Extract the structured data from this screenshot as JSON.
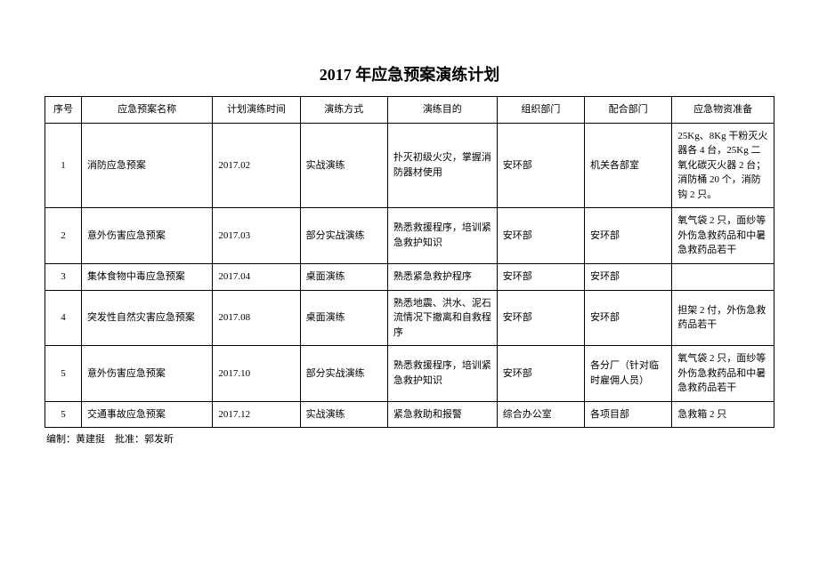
{
  "title": "2017 年应急预案演练计划",
  "headers": {
    "seq": "序号",
    "name": "应急预案名称",
    "time": "计划演练时间",
    "method": "演练方式",
    "purpose": "演练目的",
    "org": "组织部门",
    "coop": "配合部门",
    "supply": "应急物资准备"
  },
  "rows": [
    {
      "seq": "1",
      "name": "消防应急预案",
      "time": "2017.02",
      "method": "实战演练",
      "purpose": "扑灭初级火灾，掌握消防器材使用",
      "org": "安环部",
      "coop": "机关各部室",
      "supply": "25Kg、8Kg 干粉灭火器各 4 台，25Kg 二氧化碳灭火器 2 台；消防桶 20 个，消防钩 2 只。"
    },
    {
      "seq": "2",
      "name": "意外伤害应急预案",
      "time": "2017.03",
      "method": "部分实战演练",
      "purpose": "熟悉救援程序，培训紧急救护知识",
      "org": "安环部",
      "coop": "安环部",
      "supply": "氧气袋 2 只，面纱等外伤急救药品和中暑急救药品若干"
    },
    {
      "seq": "3",
      "name": "集体食物中毒应急预案",
      "time": "2017.04",
      "method": "桌面演练",
      "purpose": "熟悉紧急救护程序",
      "org": "安环部",
      "coop": "安环部",
      "supply": ""
    },
    {
      "seq": "4",
      "name": "突发性自然灾害应急预案",
      "time": "2017.08",
      "method": "桌面演练",
      "purpose": "熟悉地震、洪水、泥石流情况下撤离和自救程序",
      "org": "安环部",
      "coop": "安环部",
      "supply": "担架 2 付，外伤急救药品若干"
    },
    {
      "seq": "5",
      "name": "意外伤害应急预案",
      "time": "2017.10",
      "method": "部分实战演练",
      "purpose": "熟悉救援程序，培训紧急救护知识",
      "org": "安环部",
      "coop": "各分厂（针对临时雇佣人员）",
      "supply": "氧气袋 2 只，面纱等外伤急救药品和中暑急救药品若干"
    },
    {
      "seq": "5",
      "name": "交通事故应急预案",
      "time": "2017.12",
      "method": "实战演练",
      "purpose": "紧急救助和报警",
      "org": "综合办公室",
      "coop": "各项目部",
      "supply": "急救箱 2 只"
    }
  ],
  "footer": "编制：黄建挺　批准：郭发昕"
}
